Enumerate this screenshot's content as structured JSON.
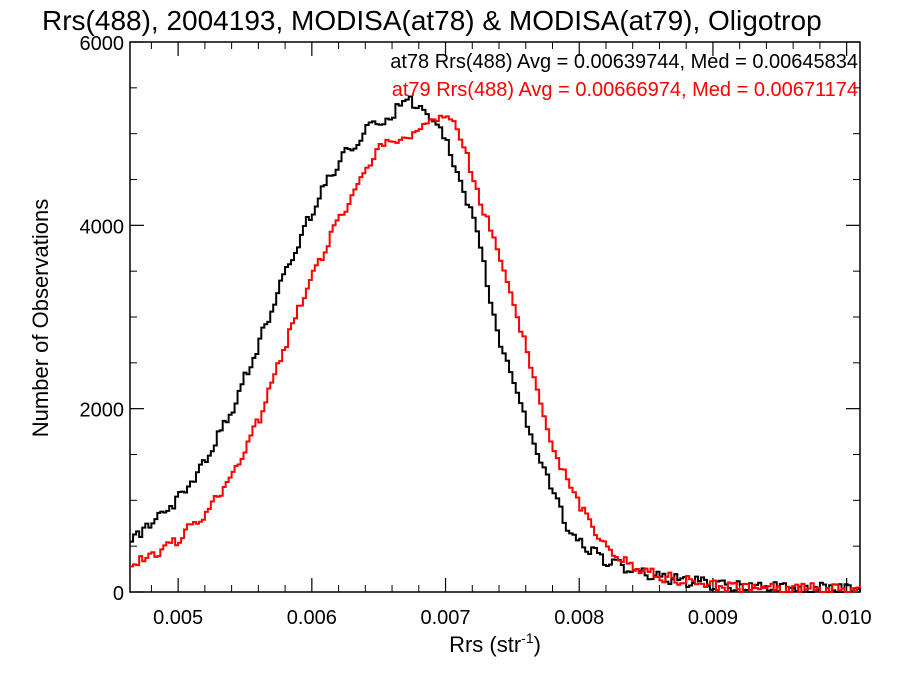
{
  "chart_data": {
    "type": "line",
    "title": "Rrs(488), 2004193, MODISA(at78) & MODISA(at79), Oligotrop",
    "xlabel": "Rrs (str",
    "xlabel_superscript": "-1",
    "xlabel_suffix": ")",
    "ylabel": "Number of Observations",
    "xlim": [
      0.00464,
      0.0101
    ],
    "ylim": [
      0,
      6000
    ],
    "x_ticks": [
      "0.005",
      "0.006",
      "0.007",
      "0.008",
      "0.009",
      "0.010"
    ],
    "y_ticks": [
      "0",
      "2000",
      "4000",
      "6000"
    ],
    "grid": false,
    "legend_position": "top-right",
    "series": [
      {
        "name": "at78",
        "color": "#000000",
        "annotation": "at78 Rrs(488) Avg = 0.00639744, Med = 0.00645834",
        "x": [
          0.00464,
          0.0048,
          0.005,
          0.0052,
          0.0054,
          0.0056,
          0.0058,
          0.006,
          0.0062,
          0.0064,
          0.0065,
          0.0066,
          0.0067,
          0.0068,
          0.0069,
          0.007,
          0.0071,
          0.0072,
          0.0073,
          0.0074,
          0.0075,
          0.0076,
          0.0077,
          0.0078,
          0.0079,
          0.008,
          0.0082,
          0.0084,
          0.0086,
          0.0088,
          0.009,
          0.0092,
          0.0095,
          0.0098,
          0.0101
        ],
        "values": [
          550,
          720,
          1000,
          1400,
          1980,
          2700,
          3500,
          4150,
          4700,
          5000,
          5100,
          5200,
          5330,
          5300,
          5100,
          4850,
          4500,
          4000,
          3350,
          2700,
          2200,
          1800,
          1380,
          1000,
          700,
          500,
          300,
          200,
          130,
          80,
          50,
          30,
          15,
          5,
          0
        ]
      },
      {
        "name": "at79",
        "color": "#ff0000",
        "annotation": "at79 Rrs(488) Avg = 0.00666974, Med = 0.00671174",
        "x": [
          0.00464,
          0.0048,
          0.005,
          0.0052,
          0.0054,
          0.0056,
          0.0058,
          0.006,
          0.0062,
          0.0064,
          0.0065,
          0.0066,
          0.0067,
          0.0068,
          0.0069,
          0.007,
          0.0071,
          0.0072,
          0.0073,
          0.0074,
          0.0075,
          0.0076,
          0.0077,
          0.0078,
          0.0079,
          0.008,
          0.0082,
          0.0084,
          0.0086,
          0.0088,
          0.009,
          0.0092,
          0.0095,
          0.0098,
          0.0101
        ],
        "values": [
          280,
          380,
          560,
          820,
          1260,
          1880,
          2700,
          3450,
          4050,
          4600,
          4800,
          4900,
          4950,
          5000,
          5150,
          5180,
          4900,
          4500,
          4000,
          3550,
          3150,
          2550,
          2000,
          1550,
          1150,
          880,
          430,
          230,
          130,
          80,
          40,
          20,
          10,
          5,
          0
        ]
      }
    ]
  }
}
